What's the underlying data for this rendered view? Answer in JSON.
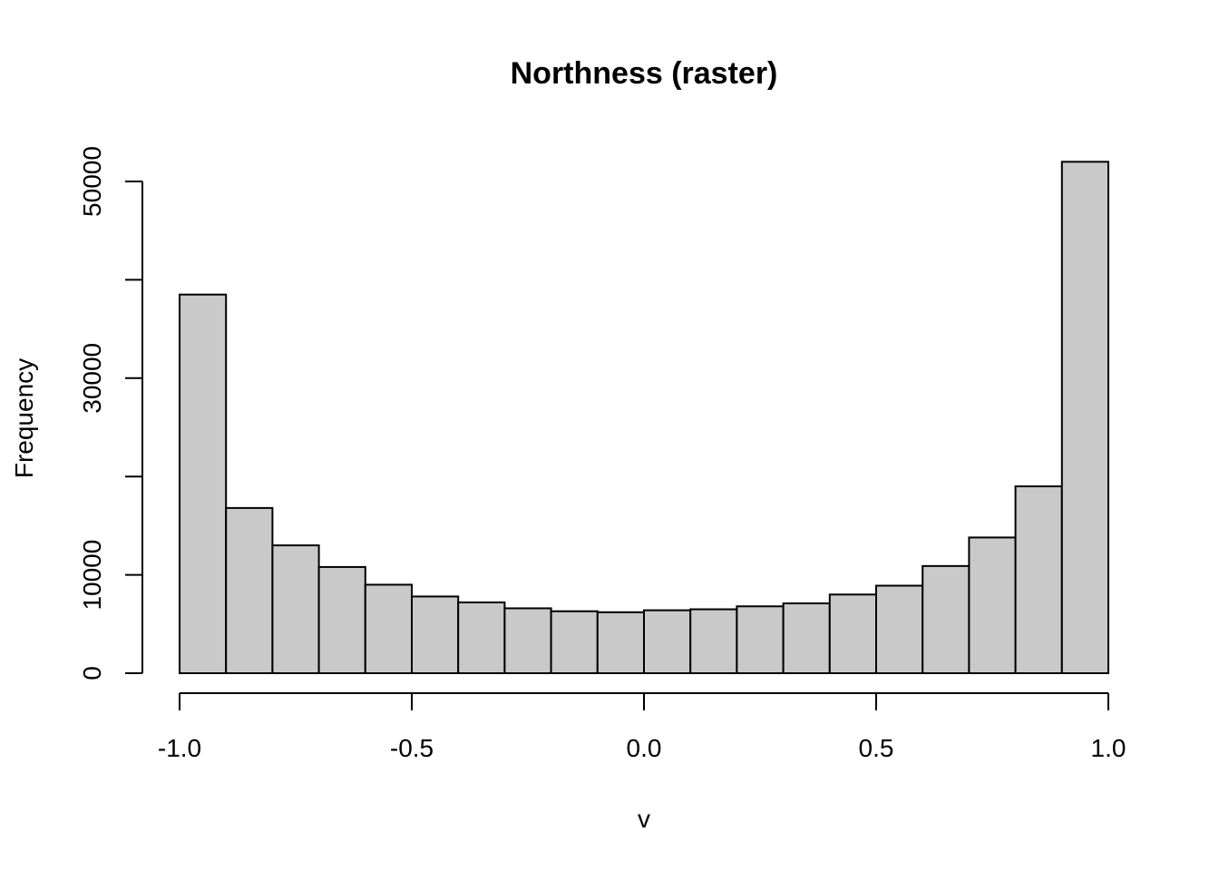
{
  "chart_data": {
    "type": "bar",
    "subtype": "histogram",
    "title": "Northness (raster)",
    "xlabel": "v",
    "ylabel": "Frequency",
    "bar_color": "#c9c9c9",
    "edge_color": "#000000",
    "xlim": [
      -1.0,
      1.0
    ],
    "ylim": [
      0,
      52000
    ],
    "bin_edges": [
      -1.0,
      -0.9,
      -0.8,
      -0.7,
      -0.6,
      -0.5,
      -0.4,
      -0.3,
      -0.2,
      -0.1,
      0.0,
      0.1,
      0.2,
      0.3,
      0.4,
      0.5,
      0.6,
      0.7,
      0.8,
      0.9,
      1.0
    ],
    "values": [
      38500,
      16800,
      13000,
      10800,
      9000,
      7800,
      7200,
      6600,
      6300,
      6200,
      6400,
      6500,
      6800,
      7100,
      8000,
      8900,
      10900,
      13800,
      19000,
      52000
    ],
    "x_ticks": [
      {
        "value": -1.0,
        "label": "-1.0"
      },
      {
        "value": -0.5,
        "label": "-0.5"
      },
      {
        "value": 0.0,
        "label": "0.0"
      },
      {
        "value": 0.5,
        "label": "0.5"
      },
      {
        "value": 1.0,
        "label": "1.0"
      }
    ],
    "y_ticks": [
      0,
      10000,
      20000,
      30000,
      40000,
      50000
    ],
    "y_tick_labels": [
      {
        "value": 0,
        "label": "0"
      },
      {
        "value": 10000,
        "label": "10000"
      },
      {
        "value": 30000,
        "label": "30000"
      },
      {
        "value": 50000,
        "label": "50000"
      }
    ],
    "grid": false,
    "legend": "none"
  }
}
